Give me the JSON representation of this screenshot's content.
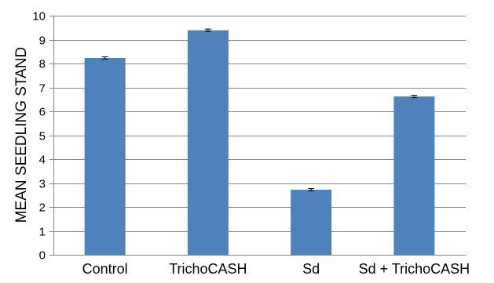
{
  "chart_data": {
    "type": "bar",
    "title": "",
    "xlabel": "",
    "ylabel": "MEAN SEEDLING STAND",
    "categories": [
      "Control",
      "TrichoCASH",
      "Sd",
      "Sd + TrichoCASH"
    ],
    "values": [
      8.23,
      9.39,
      2.72,
      6.62
    ],
    "error": [
      0.05,
      0.05,
      0.05,
      0.05
    ],
    "ylim": [
      0,
      10
    ],
    "yticks": [
      "0",
      "1",
      "2",
      "3",
      "4",
      "5",
      "6",
      "7",
      "8",
      "9",
      "10"
    ],
    "grid": true,
    "legend": "none",
    "colors": {
      "bar": "#4f81bd",
      "grid": "#868686",
      "axis": "#868686",
      "errorbar": "#000000"
    }
  }
}
